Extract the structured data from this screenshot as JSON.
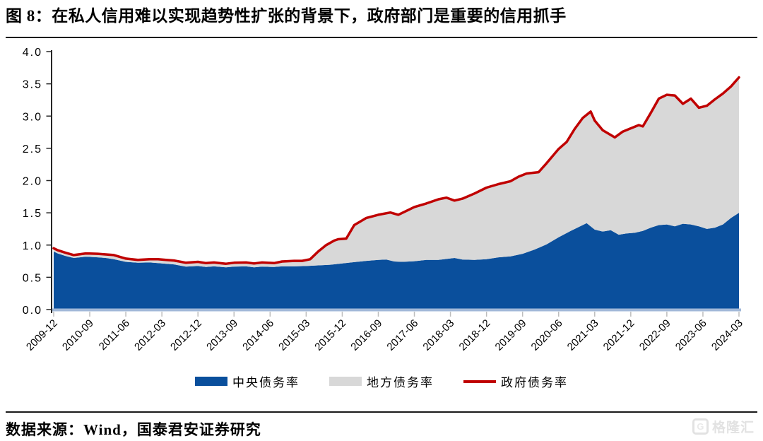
{
  "title": "图 8：在私人信用难以实现趋势性扩张的背景下，政府部门是重要的信用抓手",
  "footer": {
    "source": "数据来源：Wind，国泰君安证券研究"
  },
  "watermark": {
    "brand": "格隆汇",
    "icon_letter": "G"
  },
  "chart_data": {
    "type": "area",
    "stacked": true,
    "title": "",
    "xlabel": "",
    "ylabel": "",
    "ylim": [
      0,
      4
    ],
    "y_tick_step": 0.5,
    "y_tick_labels": [
      "0.0",
      "0.5",
      "1.0",
      "1.5",
      "2.0",
      "2.5",
      "3.0",
      "3.5",
      "4.0"
    ],
    "grid": false,
    "legend_position": "bottom",
    "x_unit": "month index, 0 = 2009-12, 171 = 2024-03",
    "x_tick_positions": [
      0,
      9,
      18,
      27,
      36,
      45,
      54,
      63,
      72,
      81,
      90,
      99,
      108,
      117,
      126,
      135,
      144,
      153,
      162,
      171
    ],
    "x_tick_labels": [
      "2009-12",
      "2010-09",
      "2011-06",
      "2012-03",
      "2012-12",
      "2013-09",
      "2014-06",
      "2015-03",
      "2015-12",
      "2016-09",
      "2017-06",
      "2018-03",
      "2018-12",
      "2019-09",
      "2020-06",
      "2021-03",
      "2021-12",
      "2022-09",
      "2023-06",
      "2024-03"
    ],
    "note": "stacked areas: gray 地方债务率 band = 政府债务率 line minus 中央债务率 area",
    "legend": [
      {
        "label": "中央债务率",
        "type": "area",
        "color": "#0A4F9C"
      },
      {
        "label": "地方债务率",
        "type": "area",
        "color": "#D8D8D8"
      },
      {
        "label": "政府债务率",
        "type": "line",
        "color": "#C00000"
      }
    ],
    "axis_colors": {
      "y_axis": "#262626",
      "baseline_band": "#A2B8D8",
      "x_tick": "#BDBDBD"
    },
    "series": [
      {
        "name": "中央债务率",
        "type": "area",
        "color": "#0A4F9C",
        "points": [
          [
            0,
            0.9
          ],
          [
            1,
            0.87
          ],
          [
            3,
            0.83
          ],
          [
            5,
            0.8
          ],
          [
            8,
            0.82
          ],
          [
            11,
            0.81
          ],
          [
            13,
            0.8
          ],
          [
            15,
            0.78
          ],
          [
            18,
            0.74
          ],
          [
            21,
            0.725
          ],
          [
            24,
            0.73
          ],
          [
            26,
            0.72
          ],
          [
            30,
            0.7
          ],
          [
            33,
            0.665
          ],
          [
            36,
            0.675
          ],
          [
            38,
            0.66
          ],
          [
            40,
            0.67
          ],
          [
            43,
            0.655
          ],
          [
            45,
            0.665
          ],
          [
            48,
            0.67
          ],
          [
            50,
            0.655
          ],
          [
            52,
            0.665
          ],
          [
            55,
            0.66
          ],
          [
            57,
            0.67
          ],
          [
            60,
            0.67
          ],
          [
            63,
            0.675
          ],
          [
            66,
            0.685
          ],
          [
            69,
            0.695
          ],
          [
            72,
            0.715
          ],
          [
            75,
            0.735
          ],
          [
            78,
            0.755
          ],
          [
            81,
            0.77
          ],
          [
            83,
            0.775
          ],
          [
            85,
            0.745
          ],
          [
            87,
            0.74
          ],
          [
            90,
            0.75
          ],
          [
            93,
            0.77
          ],
          [
            96,
            0.77
          ],
          [
            98,
            0.785
          ],
          [
            100,
            0.8
          ],
          [
            102,
            0.775
          ],
          [
            105,
            0.77
          ],
          [
            108,
            0.78
          ],
          [
            111,
            0.81
          ],
          [
            114,
            0.825
          ],
          [
            117,
            0.865
          ],
          [
            120,
            0.93
          ],
          [
            123,
            1.01
          ],
          [
            126,
            1.12
          ],
          [
            129,
            1.22
          ],
          [
            131,
            1.28
          ],
          [
            133,
            1.34
          ],
          [
            135,
            1.24
          ],
          [
            137,
            1.21
          ],
          [
            139,
            1.23
          ],
          [
            141,
            1.16
          ],
          [
            143,
            1.18
          ],
          [
            145,
            1.19
          ],
          [
            147,
            1.22
          ],
          [
            149,
            1.27
          ],
          [
            151,
            1.31
          ],
          [
            153,
            1.32
          ],
          [
            155,
            1.29
          ],
          [
            157,
            1.33
          ],
          [
            159,
            1.32
          ],
          [
            161,
            1.29
          ],
          [
            163,
            1.25
          ],
          [
            165,
            1.27
          ],
          [
            167,
            1.32
          ],
          [
            169,
            1.42
          ],
          [
            171,
            1.5
          ]
        ]
      },
      {
        "name": "政府债务率",
        "type": "line",
        "color": "#C00000",
        "points": [
          [
            0,
            0.95
          ],
          [
            1,
            0.92
          ],
          [
            3,
            0.88
          ],
          [
            5,
            0.845
          ],
          [
            8,
            0.87
          ],
          [
            11,
            0.865
          ],
          [
            13,
            0.855
          ],
          [
            15,
            0.845
          ],
          [
            18,
            0.79
          ],
          [
            21,
            0.77
          ],
          [
            24,
            0.78
          ],
          [
            26,
            0.78
          ],
          [
            28,
            0.77
          ],
          [
            30,
            0.76
          ],
          [
            33,
            0.725
          ],
          [
            36,
            0.74
          ],
          [
            38,
            0.72
          ],
          [
            40,
            0.73
          ],
          [
            43,
            0.71
          ],
          [
            45,
            0.725
          ],
          [
            48,
            0.73
          ],
          [
            50,
            0.715
          ],
          [
            52,
            0.73
          ],
          [
            55,
            0.72
          ],
          [
            57,
            0.745
          ],
          [
            60,
            0.755
          ],
          [
            62,
            0.755
          ],
          [
            64,
            0.78
          ],
          [
            66,
            0.9
          ],
          [
            68,
            1.0
          ],
          [
            70,
            1.07
          ],
          [
            71,
            1.09
          ],
          [
            73,
            1.1
          ],
          [
            75,
            1.31
          ],
          [
            78,
            1.42
          ],
          [
            81,
            1.47
          ],
          [
            84,
            1.505
          ],
          [
            86,
            1.47
          ],
          [
            88,
            1.53
          ],
          [
            90,
            1.59
          ],
          [
            93,
            1.645
          ],
          [
            96,
            1.71
          ],
          [
            98,
            1.735
          ],
          [
            100,
            1.69
          ],
          [
            102,
            1.72
          ],
          [
            105,
            1.8
          ],
          [
            108,
            1.89
          ],
          [
            111,
            1.945
          ],
          [
            114,
            1.99
          ],
          [
            116,
            2.06
          ],
          [
            118,
            2.11
          ],
          [
            121,
            2.13
          ],
          [
            123,
            2.27
          ],
          [
            126,
            2.49
          ],
          [
            128,
            2.6
          ],
          [
            130,
            2.8
          ],
          [
            132,
            2.97
          ],
          [
            134,
            3.07
          ],
          [
            135,
            2.93
          ],
          [
            137,
            2.78
          ],
          [
            140,
            2.67
          ],
          [
            142,
            2.76
          ],
          [
            144,
            2.81
          ],
          [
            146,
            2.86
          ],
          [
            147,
            2.84
          ],
          [
            149,
            3.05
          ],
          [
            151,
            3.27
          ],
          [
            153,
            3.33
          ],
          [
            155,
            3.32
          ],
          [
            157,
            3.19
          ],
          [
            159,
            3.27
          ],
          [
            161,
            3.13
          ],
          [
            163,
            3.16
          ],
          [
            165,
            3.26
          ],
          [
            167,
            3.35
          ],
          [
            169,
            3.46
          ],
          [
            171,
            3.6
          ]
        ]
      }
    ]
  }
}
